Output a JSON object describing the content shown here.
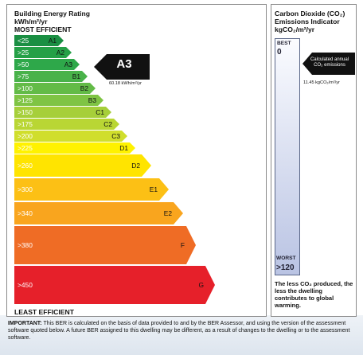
{
  "header": {
    "title": "Building Energy Rating",
    "unit": "kWh/m²/yr",
    "most_efficient": "MOST EFFICIENT",
    "least_efficient": "LEAST EFFICIENT"
  },
  "bands": [
    {
      "min": "<25",
      "code": "A1",
      "color": "#1a8f43"
    },
    {
      "min": ">25",
      "code": "A2",
      "color": "#25a047"
    },
    {
      "min": ">50",
      "code": "A3",
      "color": "#2ea84a"
    },
    {
      "min": ">75",
      "code": "B1",
      "color": "#49b24a"
    },
    {
      "min": ">100",
      "code": "B2",
      "color": "#63bb47"
    },
    {
      "min": ">125",
      "code": "B3",
      "color": "#7fc444"
    },
    {
      "min": ">150",
      "code": "C1",
      "color": "#a6cf3a"
    },
    {
      "min": ">175",
      "code": "C2",
      "color": "#b9d634"
    },
    {
      "min": ">200",
      "code": "C3",
      "color": "#d0de2c"
    },
    {
      "min": ">225",
      "code": "D1",
      "color": "#fff200"
    },
    {
      "min": ">260",
      "code": "D2",
      "color": "#ffe400"
    },
    {
      "min": ">300",
      "code": "E1",
      "color": "#fcc015"
    },
    {
      "min": ">340",
      "code": "E2",
      "color": "#f9a51e"
    },
    {
      "min": ">380",
      "code": "F",
      "color": "#ef6c25"
    },
    {
      "min": ">450",
      "code": "G",
      "color": "#e6202a"
    }
  ],
  "rating": {
    "label": "A3",
    "value": "60.18 kWh/m²/yr"
  },
  "co2": {
    "title_line1": "Carbon Dioxide (CO₂)",
    "title_line2": "Emissions Indicator",
    "unit": "kgCO₂/m²/yr",
    "best_label": "BEST",
    "best_value": "0",
    "worst_label": "WORST",
    "worst_value": ">120",
    "arrow_text": "Calculated annual CO₂ emissions",
    "value": "11.45 kgCO₂/m²/yr",
    "note": "The less CO₂ produced, the less the dwelling contributes to global warming."
  },
  "important": {
    "bold": "IMPORTANT:",
    "text": " This BER is calculated on the basis of data provided to and by the BER Assessor, and using the version of the assessment software quoted below.  A future BER assigned to this dwelling may be different, as a result of changes to the dwelling or to the assessment software."
  }
}
